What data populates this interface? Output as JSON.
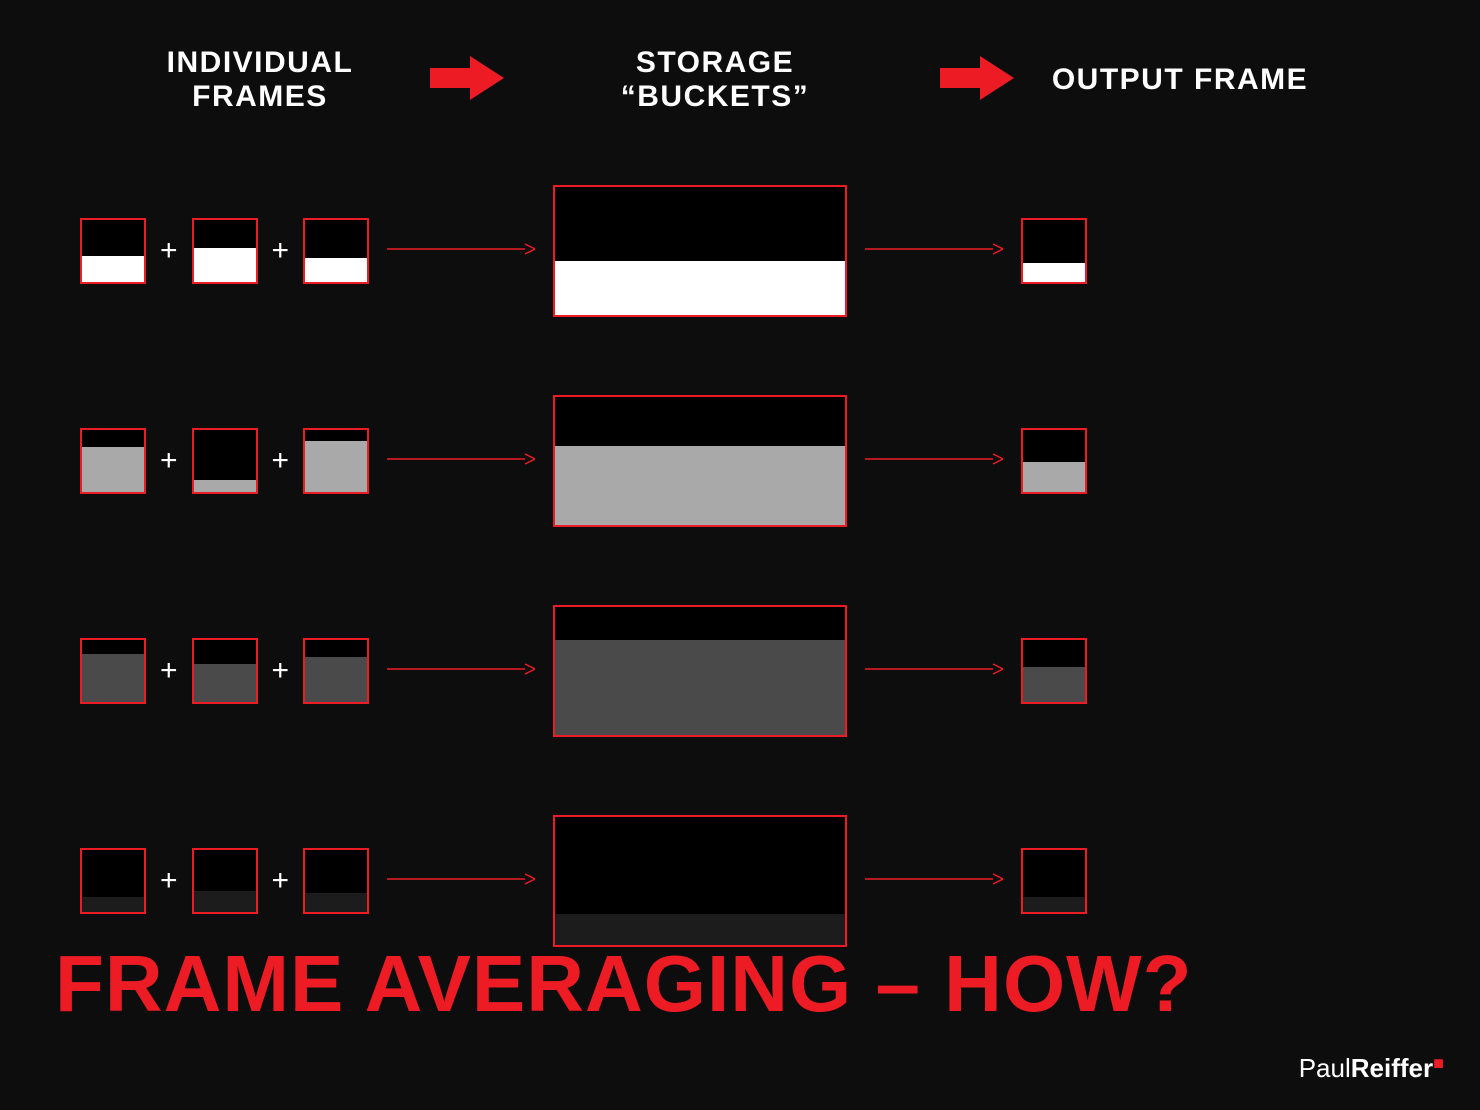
{
  "headers": {
    "individual": "INDIVIDUAL FRAMES",
    "storage": "STORAGE “BUCKETS”",
    "output": "OUTPUT FRAME"
  },
  "title": "FRAME AVERAGING – HOW?",
  "credit": "PaulReiffer",
  "plus_symbol": "+",
  "colors": {
    "background": "#0d0d0d",
    "border": "#ed1c24",
    "arrow": "#ed1c24",
    "text": "#ffffff",
    "title_color": "#ed1c24"
  },
  "big_arrow": {
    "width": 74,
    "height": 44
  },
  "thin_arrow": {
    "length": 148,
    "stroke": "#ed1c24"
  },
  "thin_arrow2": {
    "length": 138,
    "stroke": "#ed1c24"
  },
  "rows": [
    {
      "frames": [
        {
          "fill_color": "#ffffff",
          "fill_height_pct": 42
        },
        {
          "fill_color": "#ffffff",
          "fill_height_pct": 55
        },
        {
          "fill_color": "#ffffff",
          "fill_height_pct": 38
        }
      ],
      "bucket": {
        "fill_color": "#ffffff",
        "fill_height_pct": 42
      },
      "output": {
        "fill_color": "#ffffff",
        "fill_height_pct": 30
      }
    },
    {
      "frames": [
        {
          "fill_color": "#a9a9a9",
          "fill_height_pct": 72
        },
        {
          "fill_color": "#a9a9a9",
          "fill_height_pct": 20
        },
        {
          "fill_color": "#a9a9a9",
          "fill_height_pct": 82
        }
      ],
      "bucket": {
        "fill_color": "#a9a9a9",
        "fill_height_pct": 62
      },
      "output": {
        "fill_color": "#a9a9a9",
        "fill_height_pct": 48
      }
    },
    {
      "frames": [
        {
          "fill_color": "#4a4a4a",
          "fill_height_pct": 78
        },
        {
          "fill_color": "#4a4a4a",
          "fill_height_pct": 62
        },
        {
          "fill_color": "#4a4a4a",
          "fill_height_pct": 72
        }
      ],
      "bucket": {
        "fill_color": "#4a4a4a",
        "fill_height_pct": 74
      },
      "output": {
        "fill_color": "#4a4a4a",
        "fill_height_pct": 56
      }
    },
    {
      "frames": [
        {
          "fill_color": "#1c1c1c",
          "fill_height_pct": 24
        },
        {
          "fill_color": "#1c1c1c",
          "fill_height_pct": 34
        },
        {
          "fill_color": "#1c1c1c",
          "fill_height_pct": 30
        }
      ],
      "bucket": {
        "fill_color": "#1c1c1c",
        "fill_height_pct": 24
      },
      "output": {
        "fill_color": "#1c1c1c",
        "fill_height_pct": 24
      }
    }
  ]
}
